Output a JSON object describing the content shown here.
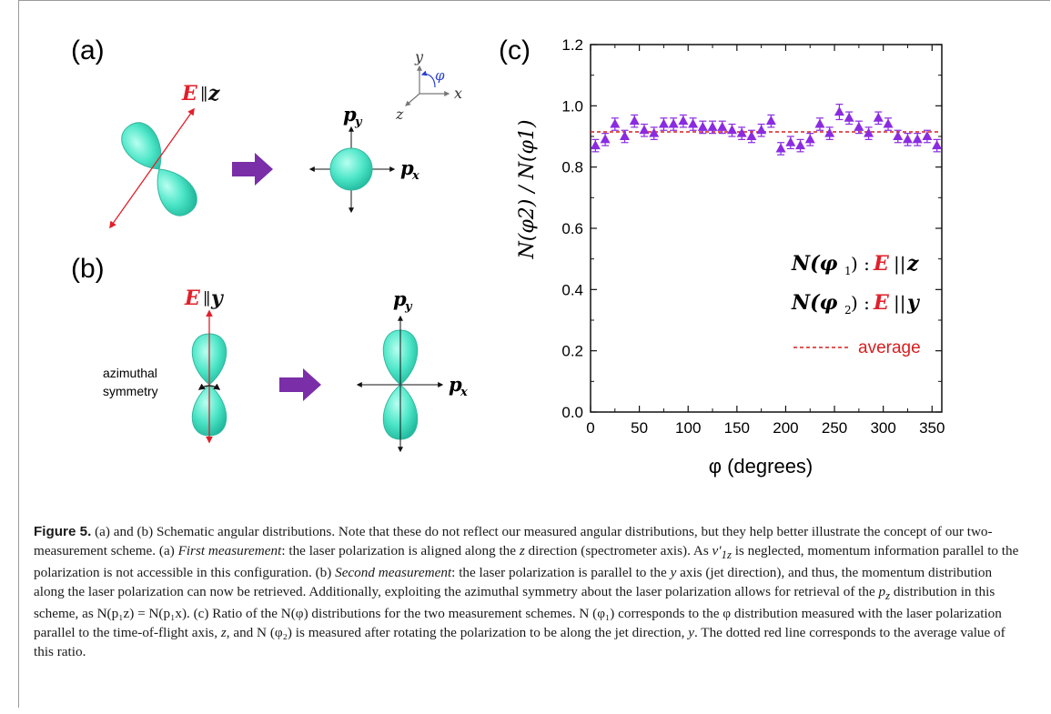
{
  "panels": {
    "a": {
      "label": "(a)",
      "field_symbol": "E",
      "field_rel": "∥",
      "field_axis": "z",
      "axis_y": "y",
      "axis_x": "x",
      "axis_z": "z",
      "axis_angle": "φ",
      "momentum_y": "p",
      "momentum_y_sub": "y",
      "momentum_x": "p",
      "momentum_x_sub": "x"
    },
    "b": {
      "label": "(b)",
      "field_symbol": "E",
      "field_rel": "∥",
      "field_axis": "y",
      "symmetry_line1": "azimuthal",
      "symmetry_line2": "symmetry",
      "momentum_y": "p",
      "momentum_y_sub": "y",
      "momentum_x": "p",
      "momentum_x_sub": "x"
    },
    "c": {
      "label": "(c)",
      "legend_1_pre": "N(φ",
      "legend_1_sub": "1",
      "legend_1_post": ") :",
      "legend_1_field": "E",
      "legend_1_rel": "||",
      "legend_1_axis": "z",
      "legend_2_pre": "N(φ",
      "legend_2_sub": "2",
      "legend_2_post": ") :",
      "legend_2_field": "E",
      "legend_2_rel": "||",
      "legend_2_axis": "y",
      "legend_avg": "average"
    }
  },
  "colors": {
    "lobe": "#4ee6c8",
    "lobe_edge": "#33b8a0",
    "field_red": "#e0202a",
    "arrow_purple": "#7a2ea8",
    "marker_purple": "#8a2be2",
    "avg_red": "#d91e1e",
    "angle_blue": "#2a3fd0"
  },
  "chart_data": {
    "type": "scatter",
    "title": "",
    "xlabel": "φ (degrees)",
    "ylabel": "N(φ2) / N(φ1)",
    "xlim": [
      0,
      360
    ],
    "ylim": [
      0.0,
      1.2
    ],
    "xticks": [
      "0",
      "50",
      "100",
      "150",
      "200",
      "250",
      "300",
      "350"
    ],
    "yticks": [
      "0.0",
      "0.2",
      "0.4",
      "0.6",
      "0.8",
      "1.0",
      "1.2"
    ],
    "grid": false,
    "legend_position": "right",
    "average": 0.915,
    "series": [
      {
        "x": [
          5,
          15,
          25,
          35,
          45,
          55,
          65,
          75,
          85,
          95,
          105,
          115,
          125,
          135,
          145,
          155,
          165,
          175,
          185,
          195,
          205,
          215,
          225,
          235,
          245,
          255,
          265,
          275,
          285,
          295,
          305,
          315,
          325,
          335,
          345,
          355
        ],
        "y": [
          0.87,
          0.89,
          0.94,
          0.9,
          0.95,
          0.92,
          0.91,
          0.94,
          0.94,
          0.95,
          0.94,
          0.93,
          0.93,
          0.93,
          0.92,
          0.91,
          0.9,
          0.92,
          0.95,
          0.86,
          0.88,
          0.87,
          0.89,
          0.94,
          0.91,
          0.98,
          0.96,
          0.93,
          0.91,
          0.96,
          0.94,
          0.9,
          0.89,
          0.89,
          0.9,
          0.87
        ],
        "err": [
          0.02,
          0.02,
          0.02,
          0.02,
          0.02,
          0.02,
          0.02,
          0.02,
          0.02,
          0.02,
          0.02,
          0.02,
          0.02,
          0.02,
          0.02,
          0.02,
          0.02,
          0.02,
          0.02,
          0.02,
          0.02,
          0.02,
          0.02,
          0.02,
          0.02,
          0.025,
          0.02,
          0.02,
          0.02,
          0.02,
          0.02,
          0.02,
          0.02,
          0.02,
          0.02,
          0.02
        ]
      }
    ]
  },
  "caption": {
    "label": "Figure 5.",
    "s1": " (a) and (b) Schematic angular distributions. Note that these do not reflect our measured angular distributions, but they help better illustrate the concept of our two-measurement scheme. (a) ",
    "first_measurement": "First measurement",
    "s2": ": the laser polarization is aligned along the ",
    "z1": "z",
    "s3": " direction (spectrometer axis). As ",
    "v": "v′",
    "v_sub": "1z",
    "s4": " is neglected, momentum information parallel to the polarization is not accessible in this configuration. (b) ",
    "second_measurement": "Second measurement",
    "s5": ": the laser polarization is parallel to the ",
    "y1": "y",
    "s6": " axis (jet direction), and thus, the momentum distribution along the laser polarization can now be retrieved. Additionally, exploiting the azimuthal symmetry about the laser polarization allows for retrieval of the ",
    "pz": "p",
    "pz_sub": "z",
    "s7": " distribution in this scheme, as ",
    "eq": "N(p₁z) = N(p₁x)",
    "s8": ". (c) Ratio of the N(φ) distributions for the two measurement schemes. N (φ₁) corresponds to the φ distribution measured with the laser polarization parallel to the time-of-flight axis, ",
    "z2": "z",
    "s9": ", and N (φ₂) is measured after rotating the polarization to be along the jet direction, ",
    "y2": "y",
    "s10": ". The dotted red line corresponds to the average value of this ratio."
  }
}
